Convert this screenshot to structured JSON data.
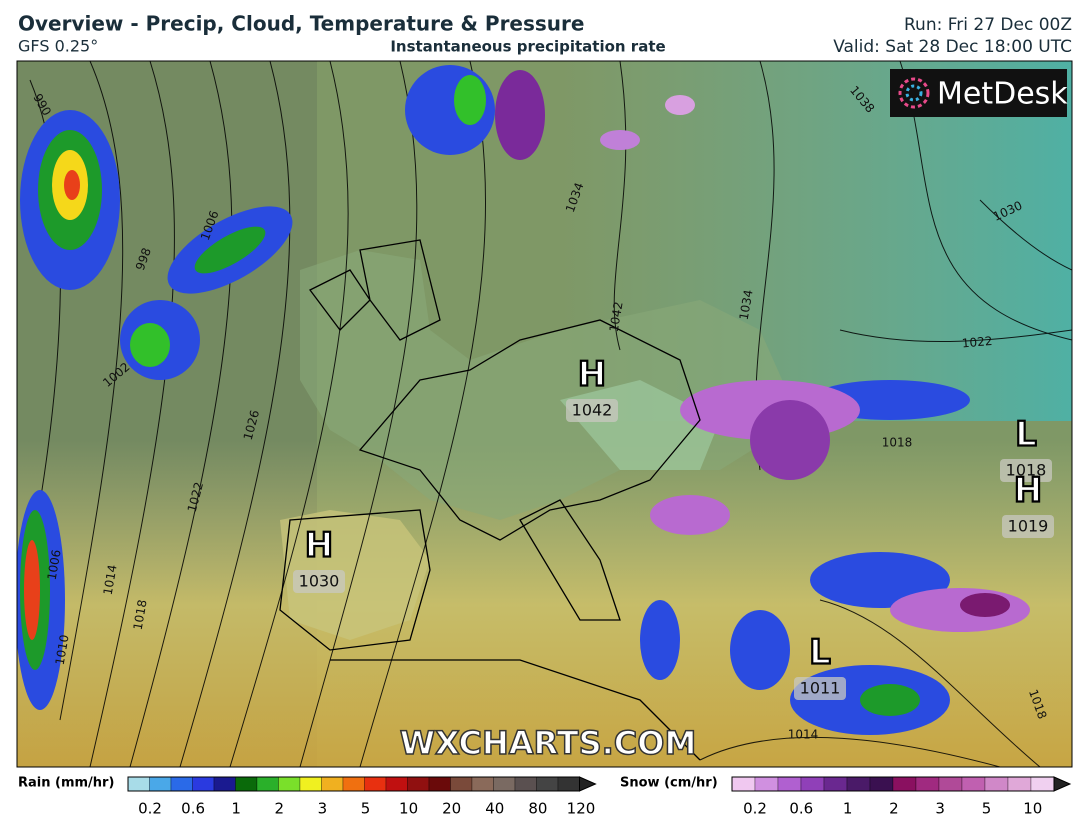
{
  "header": {
    "title": "Overview - Precip, Cloud, Temperature & Pressure",
    "model": "GFS 0.25°",
    "subtitle": "Instantaneous precipitation rate",
    "run": "Run: Fri 27 Dec 00Z",
    "valid": "Valid: Sat 28 Dec 18:00 UTC"
  },
  "map": {
    "logo": "MetDesk",
    "watermark": "WXCHARTS.COM",
    "centers": [
      {
        "kind": "H",
        "pressure": "1042"
      },
      {
        "kind": "H",
        "pressure": "1030"
      },
      {
        "kind": "L",
        "pressure": "1018"
      },
      {
        "kind": "H",
        "pressure": "1019"
      },
      {
        "kind": "L",
        "pressure": "1011"
      }
    ],
    "isobar_labels": [
      "990",
      "998",
      "1006",
      "1002",
      "1026",
      "1022",
      "1014",
      "1018",
      "1010",
      "1006",
      "1038",
      "1030",
      "1022",
      "1034",
      "1042",
      "1034",
      "1018",
      "1014",
      "1018"
    ]
  },
  "legend": {
    "rain": {
      "label": "Rain (mm/hr)",
      "ticks": [
        "0.2",
        "0.6",
        "1",
        "2",
        "3",
        "5",
        "10",
        "20",
        "40",
        "80",
        "120"
      ]
    },
    "snow": {
      "label": "Snow (cm/hr)",
      "ticks": [
        "0.2",
        "0.6",
        "1",
        "2",
        "3",
        "5",
        "10"
      ]
    }
  }
}
